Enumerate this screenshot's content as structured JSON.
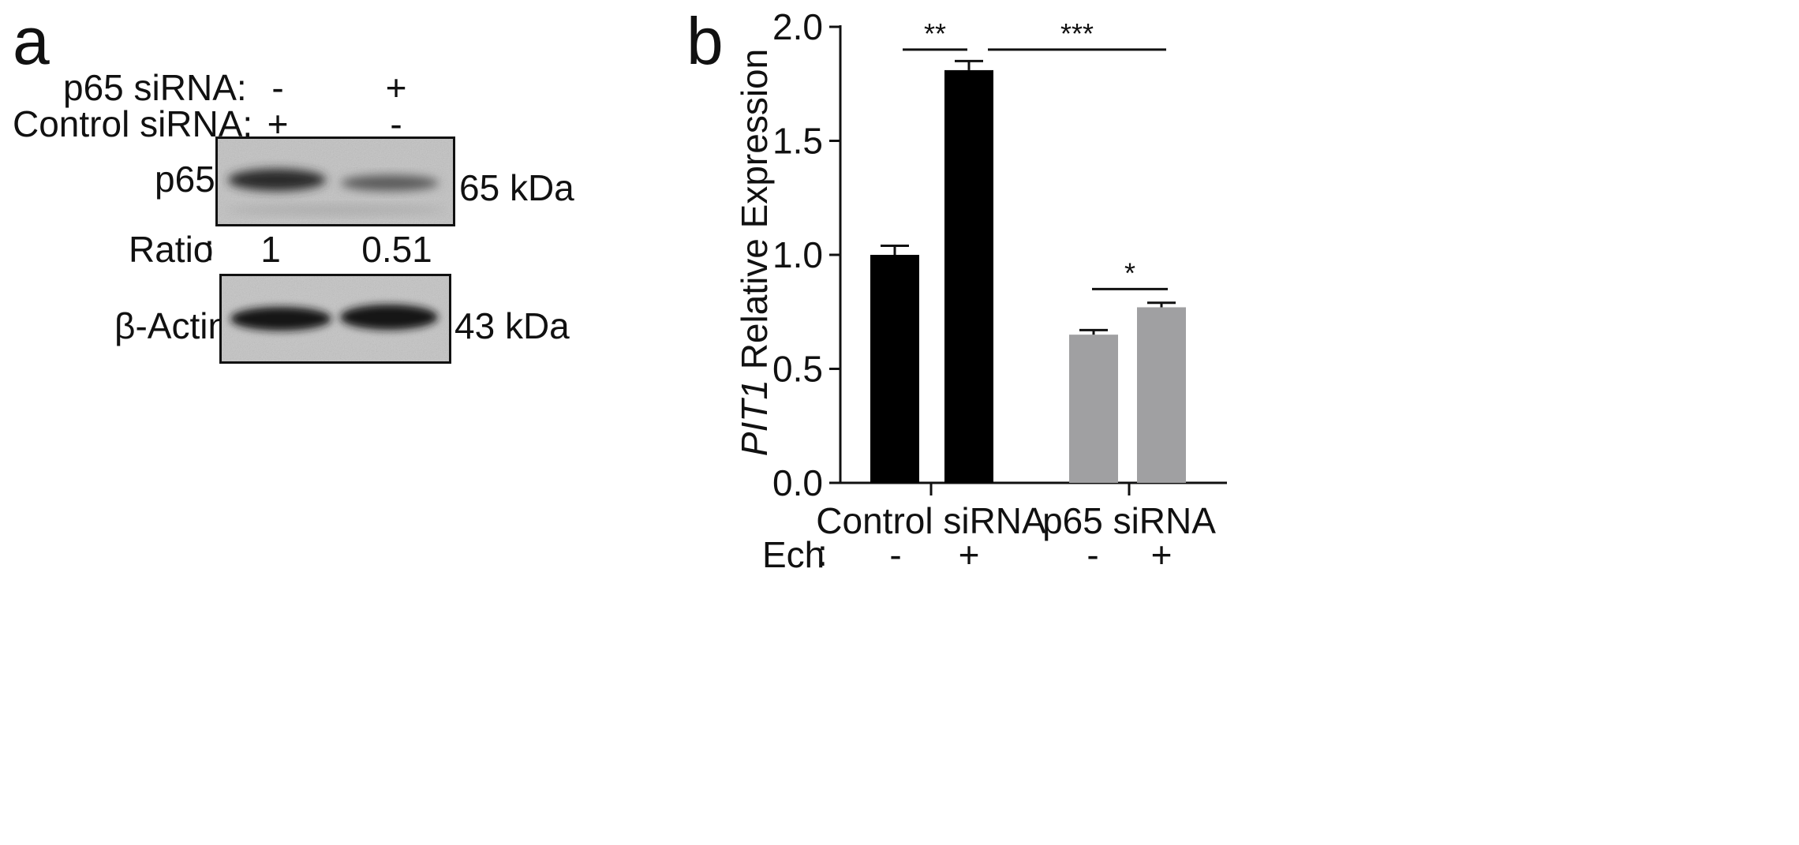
{
  "panel_a": {
    "letter": "a",
    "rows": [
      {
        "label": "p65 siRNA:",
        "values": [
          "-",
          "+"
        ]
      },
      {
        "label": "Control siRNA:",
        "values": [
          "+",
          "-"
        ]
      }
    ],
    "blots": [
      {
        "label": "p65",
        "size": "65 kDa"
      },
      {
        "label": "β-Actin",
        "size": "43 kDa"
      }
    ],
    "ratio_label": "Ratio",
    "ratio_colon": ":",
    "ratio_values": [
      "1",
      "0.51"
    ]
  },
  "panel_b": {
    "letter": "b",
    "ylabel_italic": "PIT1",
    "ylabel_rest": " Relative Expression",
    "ech_label": "Ech",
    "ech_colon": ":",
    "ech_values": [
      "-",
      "+",
      "-",
      "+"
    ]
  },
  "chart_data": {
    "type": "bar",
    "categories": [
      "Control siRNA",
      "p65 siRNA"
    ],
    "bars": [
      {
        "group": "Control siRNA",
        "ech": "-",
        "value": 1.0,
        "error": 0.04,
        "color": "#000000"
      },
      {
        "group": "Control siRNA",
        "ech": "+",
        "value": 1.81,
        "error": 0.04,
        "color": "#000000"
      },
      {
        "group": "p65 siRNA",
        "ech": "-",
        "value": 0.65,
        "error": 0.02,
        "color": "#a0a0a2"
      },
      {
        "group": "p65 siRNA",
        "ech": "+",
        "value": 0.77,
        "error": 0.02,
        "color": "#a0a0a2"
      }
    ],
    "ylim": [
      0,
      2.0
    ],
    "yticks": [
      "0.0",
      "0.5",
      "1.0",
      "1.5",
      "2.0"
    ],
    "significance": [
      {
        "from": 0,
        "to": 1,
        "label": "**",
        "y": 1.9
      },
      {
        "from": 1,
        "to": 3,
        "label": "***",
        "y": 1.9
      },
      {
        "from": 2,
        "to": 3,
        "label": "*",
        "y": 0.85
      }
    ],
    "grid": false,
    "legend": "none"
  }
}
